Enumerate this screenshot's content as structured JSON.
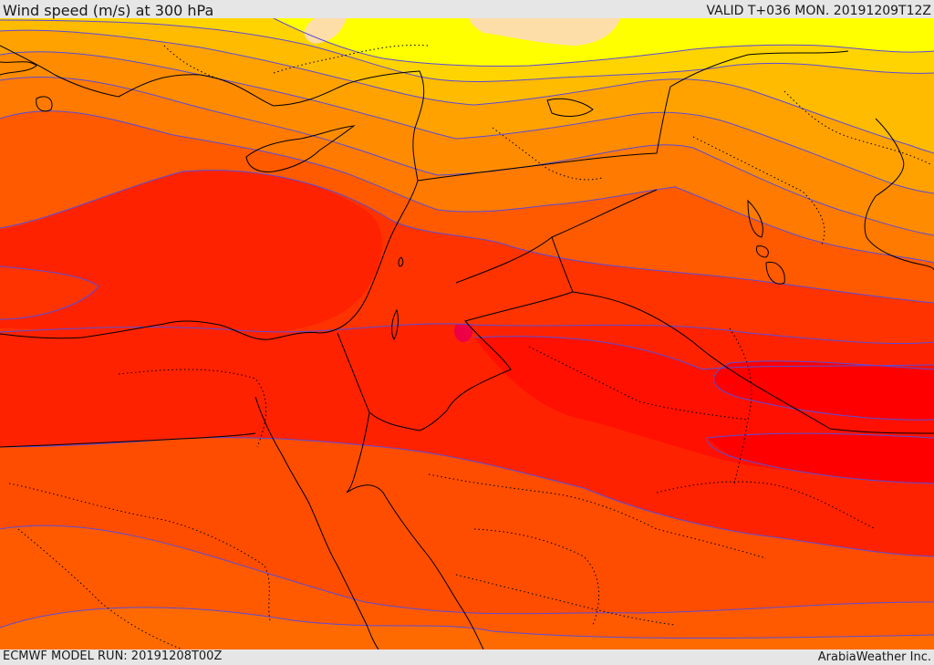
{
  "header": {
    "title": "Wind speed (m/s) at 300 hPa",
    "valid_time": "VALID T+036 MON. 20191209T12Z"
  },
  "footer": {
    "model_run": "ECMWF MODEL RUN: 20191208T00Z",
    "credit": "ArabiaWeather Inc."
  },
  "map": {
    "field": "wind speed at 300 hPa",
    "colors": {
      "lightest_band": "#fddda8",
      "band_1": "#ffff00",
      "band_2": "#ffd400",
      "band_3": "#ffbb00",
      "band_4": "#ffa200",
      "band_5": "#ff8800",
      "band_6": "#ff6a00",
      "band_7": "#ff4d00",
      "band_8": "#ff3300",
      "band_9": "#ff2200",
      "band_10": "#ff1000",
      "band_11": "#ff0000",
      "coastline": "#000000",
      "border": "#000000",
      "contour": "#5b4bd8"
    }
  }
}
